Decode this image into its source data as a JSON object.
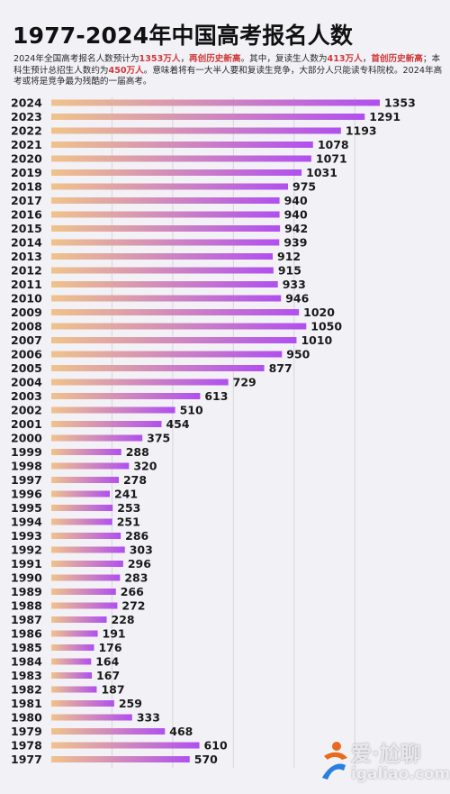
{
  "title": "1977-2024年中国高考报名人数",
  "description": {
    "s1": "2024年全国高考报名人数预计为",
    "h1": "1353万人",
    "s2": "，",
    "h2": "再创历史新高",
    "s3": "。其中，复读生人数为",
    "h3": "413万人",
    "s4": "，",
    "h4": "首创历史新高",
    "s5": "；本科生预计总招生人数约为",
    "h5": "450万人",
    "s6": "。意味着将有一大半人要和复读生竞争，大部分人只能读专科院校。2024年高考或将是竞争最为残酷的一届高考。"
  },
  "watermark": {
    "brand": "爱·尬聊",
    "url": "igaliao.com"
  },
  "colors": {
    "bar_start": "#f0c38a",
    "bar_end": "#b14ff0",
    "highlight": "#d03a3a",
    "background": "#f2f1f6"
  },
  "chart_data": {
    "type": "bar",
    "orientation": "horizontal",
    "unit": "万人",
    "categories": [
      "2024",
      "2023",
      "2022",
      "2021",
      "2020",
      "2019",
      "2018",
      "2017",
      "2016",
      "2015",
      "2014",
      "2013",
      "2012",
      "2011",
      "2010",
      "2009",
      "2008",
      "2007",
      "2006",
      "2005",
      "2004",
      "2003",
      "2002",
      "2001",
      "2000",
      "1999",
      "1998",
      "1997",
      "1996",
      "1995",
      "1994",
      "1993",
      "1992",
      "1991",
      "1990",
      "1989",
      "1988",
      "1987",
      "1986",
      "1985",
      "1984",
      "1983",
      "1982",
      "1981",
      "1980",
      "1979",
      "1978",
      "1977"
    ],
    "values": [
      1353,
      1291,
      1193,
      1078,
      1071,
      1031,
      975,
      940,
      940,
      942,
      939,
      912,
      915,
      933,
      946,
      1020,
      1050,
      1010,
      950,
      877,
      729,
      613,
      510,
      454,
      375,
      288,
      320,
      278,
      241,
      253,
      251,
      286,
      303,
      296,
      283,
      266,
      272,
      228,
      191,
      176,
      164,
      167,
      187,
      259,
      333,
      468,
      610,
      570
    ],
    "xlim": [
      0,
      1500
    ],
    "grid": true,
    "gridlines": [
      250,
      500,
      750,
      1000,
      1250
    ],
    "data_labels": true
  }
}
